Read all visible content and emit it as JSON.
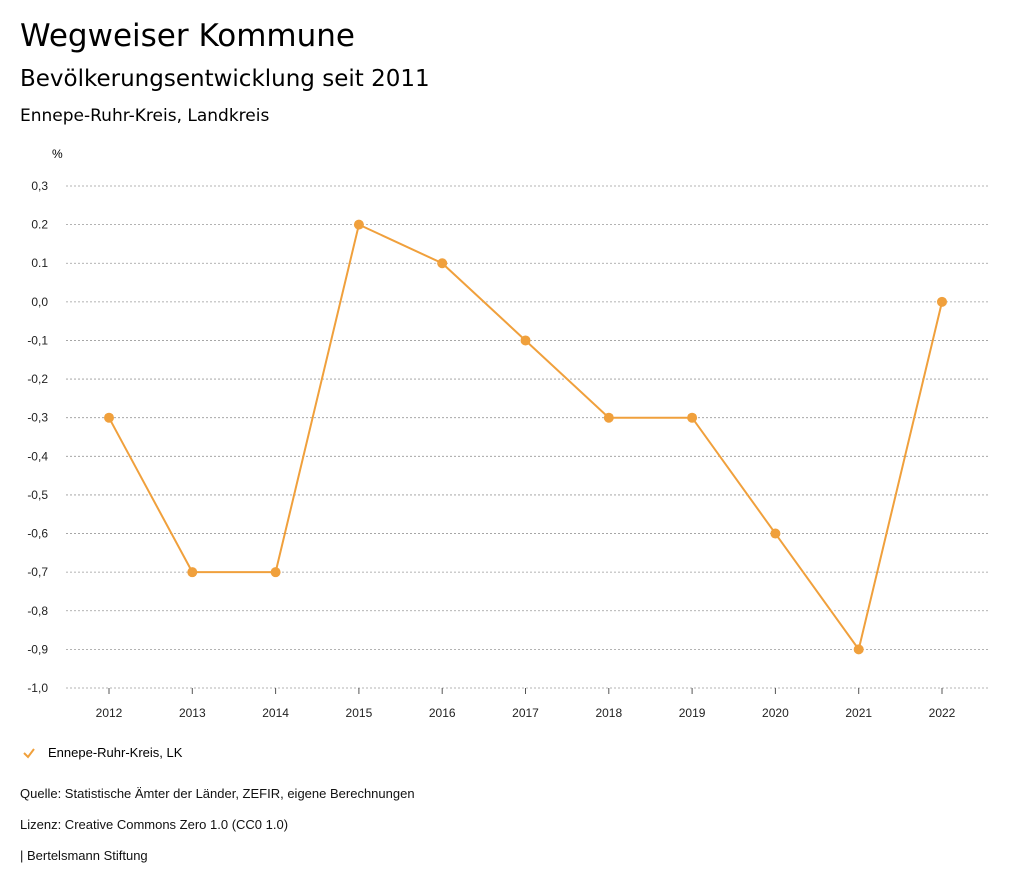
{
  "header": {
    "title": "Wegweiser Kommune",
    "subtitle": "Bevölkerungsentwicklung seit 2011",
    "region": "Ennepe-Ruhr-Kreis, Landkreis"
  },
  "legend": {
    "label": "Ennepe-Ruhr-Kreis, LK"
  },
  "footer": {
    "source": "Quelle: Statistische Ämter der Länder, ZEFIR, eigene Berechnungen",
    "license": "Lizenz: Creative Commons Zero 1.0 (CC0 1.0)",
    "publisher": "| Bertelsmann Stiftung"
  },
  "colors": {
    "series": "#f0a03c",
    "grid": "#9a9a9a"
  },
  "chart_data": {
    "type": "line",
    "title": "Bevölkerungsentwicklung seit 2011",
    "ylabel": "%",
    "xlabel": "",
    "ylim": [
      -1.0,
      0.3
    ],
    "y_ticks": [
      "0,3",
      "0.2",
      "0.1",
      "0,0",
      "-0,1",
      "-0,2",
      "-0,3",
      "-0,4",
      "-0,5",
      "-0,6",
      "-0,7",
      "-0,8",
      "-0,9",
      "-1,0"
    ],
    "y_tick_values": [
      0.3,
      0.2,
      0.1,
      0.0,
      -0.1,
      -0.2,
      -0.3,
      -0.4,
      -0.5,
      -0.6,
      -0.7,
      -0.8,
      -0.9,
      -1.0
    ],
    "categories": [
      "2012",
      "2013",
      "2014",
      "2015",
      "2016",
      "2017",
      "2018",
      "2019",
      "2020",
      "2021",
      "2022"
    ],
    "series": [
      {
        "name": "Ennepe-Ruhr-Kreis, LK",
        "values": [
          -0.3,
          -0.7,
          -0.7,
          0.2,
          0.1,
          -0.1,
          -0.3,
          -0.3,
          -0.6,
          -0.9,
          0.0
        ]
      }
    ],
    "grid": true,
    "legend_position": "bottom-left"
  }
}
